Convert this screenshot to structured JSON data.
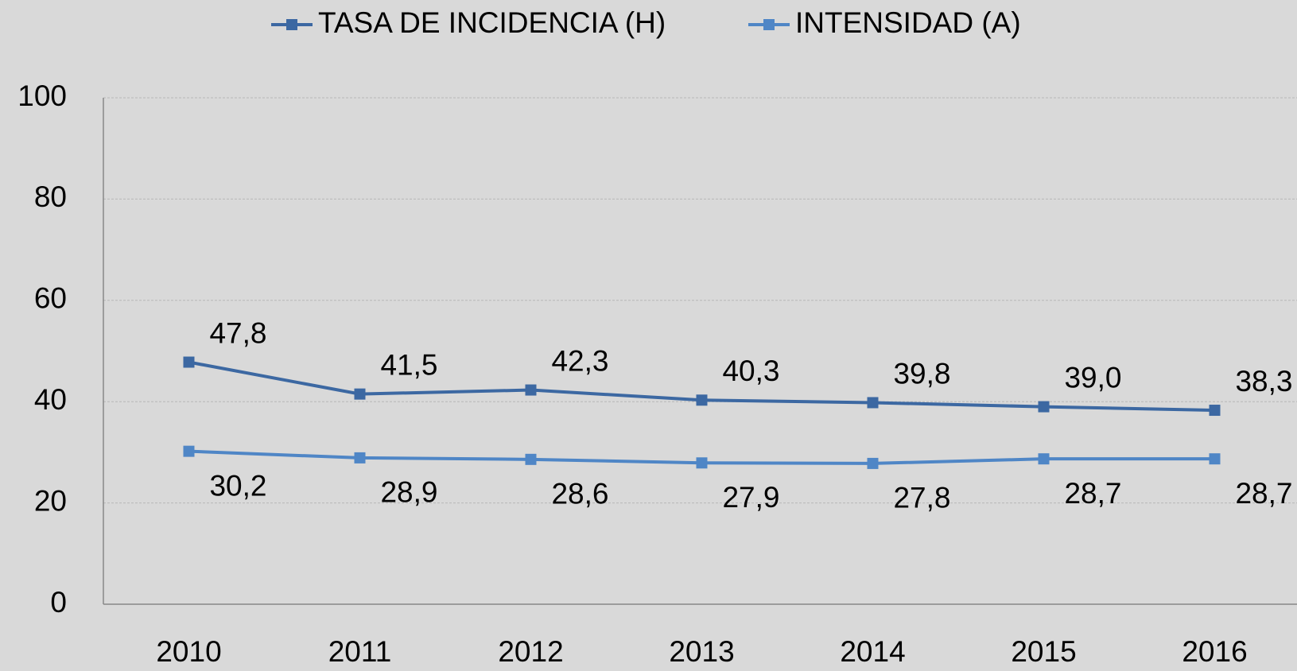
{
  "chart_data": {
    "type": "line",
    "categories": [
      "2010",
      "2011",
      "2012",
      "2013",
      "2014",
      "2015",
      "2016"
    ],
    "series": [
      {
        "name": "TASA DE INCIDENCIA (H)",
        "color": "#3c68a2",
        "values": [
          47.8,
          41.5,
          42.3,
          40.3,
          39.8,
          39.0,
          38.3
        ],
        "value_labels": [
          "47,8",
          "41,5",
          "42,3",
          "40,3",
          "39,8",
          "39,0",
          "38,3"
        ]
      },
      {
        "name": "INTENSIDAD (A)",
        "color": "#4f86c6",
        "values": [
          30.2,
          28.9,
          28.6,
          27.9,
          27.8,
          28.7,
          28.7
        ],
        "value_labels": [
          "30,2",
          "28,9",
          "28,6",
          "27,9",
          "27,8",
          "28,7",
          "28,7"
        ]
      }
    ],
    "ylim": [
      0,
      100
    ],
    "yticks": [
      0,
      20,
      40,
      60,
      80,
      100
    ],
    "grid": true,
    "legend": "top"
  }
}
